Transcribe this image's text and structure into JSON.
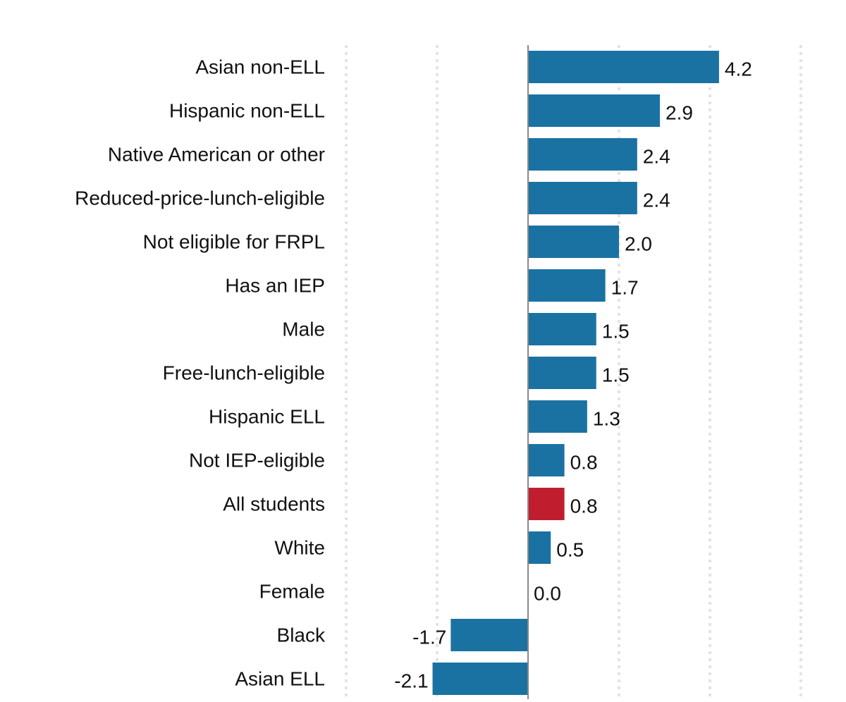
{
  "chart_data": {
    "type": "bar",
    "orientation": "horizontal",
    "categories": [
      "Asian non-ELL",
      "Hispanic non-ELL",
      "Native American or other",
      "Reduced-price-lunch-eligible",
      "Not eligible for FRPL",
      "Has an IEP",
      "Male",
      "Free-lunch-eligible",
      "Hispanic ELL",
      "Not IEP-eligible",
      "All students",
      "White",
      "Female",
      "Black",
      "Asian ELL"
    ],
    "values": [
      4.2,
      2.9,
      2.4,
      2.4,
      2.0,
      1.7,
      1.5,
      1.5,
      1.3,
      0.8,
      0.8,
      0.5,
      0.0,
      -1.7,
      -2.1
    ],
    "value_labels": [
      "4.2",
      "2.9",
      "2.4",
      "2.4",
      "2.0",
      "1.7",
      "1.5",
      "1.5",
      "1.3",
      "0.8",
      "0.8",
      "0.5",
      "0.0",
      "-1.7",
      "-2.1"
    ],
    "highlight_category": "All students",
    "colors": {
      "bar": "#1a72a3",
      "highlight": "#c01e2e",
      "zero_line": "#888888",
      "grid": "#e3e3e3"
    },
    "xlim": [
      -4,
      6
    ],
    "grid_ticks": [
      -4,
      -2,
      0,
      2,
      4,
      6
    ],
    "grid": true,
    "tick_labels_shown": false,
    "title": "",
    "xlabel": "",
    "ylabel": ""
  }
}
